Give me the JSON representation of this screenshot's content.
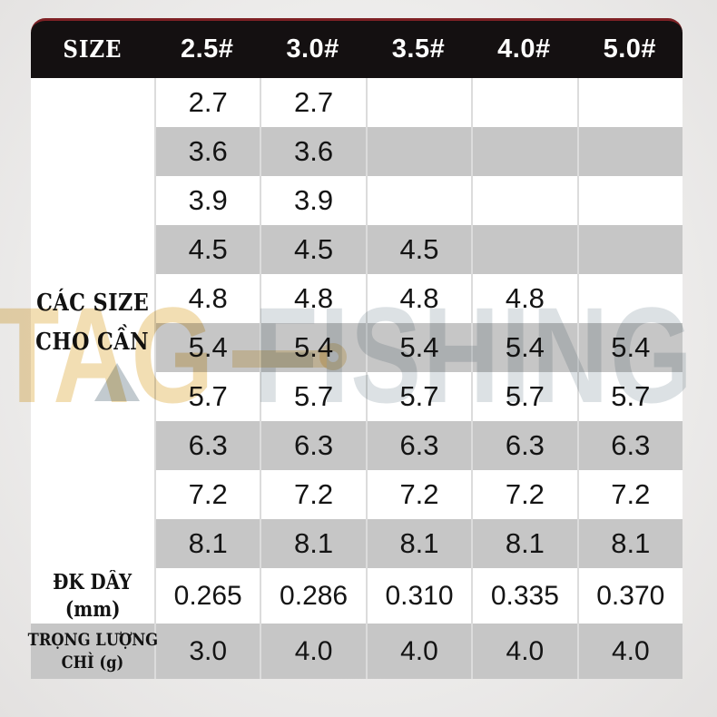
{
  "chart_data": {
    "type": "table",
    "title": "",
    "columns": [
      "SIZE",
      "2.5#",
      "3.0#",
      "3.5#",
      "4.0#",
      "5.0#"
    ],
    "row_groups": [
      {
        "group_label": "CÁC SIZE CHO CẦN",
        "rows": [
          [
            "2.7",
            "2.7",
            "",
            "",
            ""
          ],
          [
            "3.6",
            "3.6",
            "",
            "",
            ""
          ],
          [
            "3.9",
            "3.9",
            "",
            "",
            ""
          ],
          [
            "4.5",
            "4.5",
            "4.5",
            "",
            ""
          ],
          [
            "4.8",
            "4.8",
            "4.8",
            "4.8",
            ""
          ],
          [
            "5.4",
            "5.4",
            "5.4",
            "5.4",
            "5.4"
          ],
          [
            "5.7",
            "5.7",
            "5.7",
            "5.7",
            "5.7"
          ],
          [
            "6.3",
            "6.3",
            "6.3",
            "6.3",
            "6.3"
          ],
          [
            "7.2",
            "7.2",
            "7.2",
            "7.2",
            "7.2"
          ],
          [
            "8.1",
            "8.1",
            "8.1",
            "8.1",
            "8.1"
          ]
        ]
      },
      {
        "group_label": "ĐK DÂY (mm)",
        "rows": [
          [
            "0.265",
            "0.286",
            "0.310",
            "0.335",
            "0.370"
          ]
        ]
      },
      {
        "group_label": "TRỌNG LƯỢNG CHÌ (g)",
        "rows": [
          [
            "3.0",
            "4.0",
            "4.0",
            "4.0",
            "4.0"
          ]
        ]
      }
    ],
    "layout": {
      "striped_rows": true,
      "header_background": "black"
    }
  },
  "table": {
    "header": {
      "size": "SIZE",
      "cols": [
        "2.5#",
        "3.0#",
        "3.5#",
        "4.0#",
        "5.0#"
      ]
    },
    "rod_size_label": {
      "line1": "CÁC SIZE",
      "line2": "CHO CẦN"
    },
    "size_rows": [
      [
        "2.7",
        "2.7",
        "",
        "",
        ""
      ],
      [
        "3.6",
        "3.6",
        "",
        "",
        ""
      ],
      [
        "3.9",
        "3.9",
        "",
        "",
        ""
      ],
      [
        "4.5",
        "4.5",
        "4.5",
        "",
        ""
      ],
      [
        "4.8",
        "4.8",
        "4.8",
        "4.8",
        ""
      ],
      [
        "5.4",
        "5.4",
        "5.4",
        "5.4",
        "5.4"
      ],
      [
        "5.7",
        "5.7",
        "5.7",
        "5.7",
        "5.7"
      ],
      [
        "6.3",
        "6.3",
        "6.3",
        "6.3",
        "6.3"
      ],
      [
        "7.2",
        "7.2",
        "7.2",
        "7.2",
        "7.2"
      ],
      [
        "8.1",
        "8.1",
        "8.1",
        "8.1",
        "8.1"
      ]
    ],
    "dk_day": {
      "line1": "ĐK DÂY",
      "line2": "(mm)",
      "values": [
        "0.265",
        "0.286",
        "0.310",
        "0.335",
        "0.370"
      ]
    },
    "trong_luong": {
      "line1": "TRỌNG LƯỢNG",
      "line2": "CHÌ (g)",
      "values": [
        "3.0",
        "4.0",
        "4.0",
        "4.0",
        "4.0"
      ]
    }
  },
  "watermark": {
    "tag": "TAG",
    "fishing": "FISHING"
  },
  "colors": {
    "header_bg": "#141011",
    "header_top_line": "#7e2125",
    "stripe": "#c6c6c6",
    "row_white": "#ffffff",
    "page_bg": "#eceaea",
    "separator": "#dcdcdc",
    "text": "#141414",
    "watermark_gold": "#dfb04a",
    "watermark_gray": "#8b9aa4"
  }
}
